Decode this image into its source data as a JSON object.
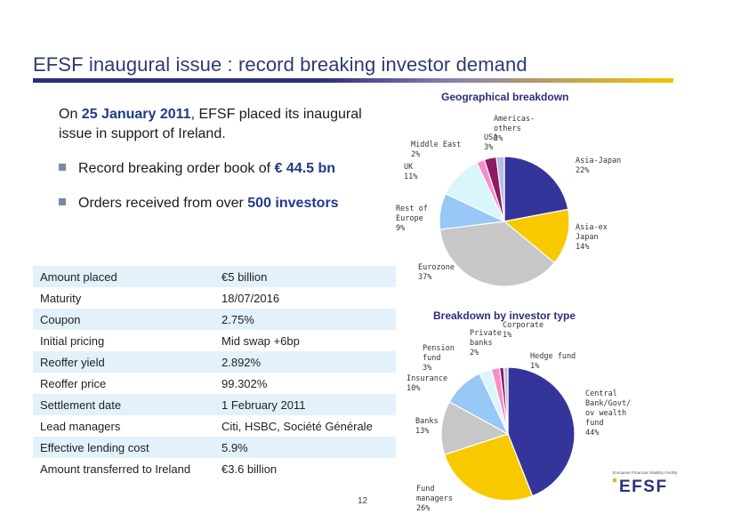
{
  "page": {
    "title": "EFSF inaugural issue : record breaking investor demand",
    "page_number": "12"
  },
  "intro": {
    "prefix": "On ",
    "date": "25 January 2011",
    "suffix": ", EFSF placed its inaugural issue in support of Ireland."
  },
  "bullets": [
    {
      "prefix": "Record breaking order book of ",
      "highlight": "€ 44.5 bn",
      "suffix": ""
    },
    {
      "prefix": "Orders received from over ",
      "highlight": "500 investors",
      "suffix": ""
    }
  ],
  "terms": [
    {
      "label": "Amount placed",
      "value": "€5 billion"
    },
    {
      "label": "Maturity",
      "value": "18/07/2016"
    },
    {
      "label": "Coupon",
      "value": "2.75%"
    },
    {
      "label": "Initial pricing",
      "value": "Mid swap +6bp"
    },
    {
      "label": "Reoffer yield",
      "value": "2.892%"
    },
    {
      "label": "Reoffer price",
      "value": "99.302%"
    },
    {
      "label": "Settlement date",
      "value": "1 February 2011"
    },
    {
      "label": "Lead managers",
      "value": "Citi, HSBC, Société Générale"
    },
    {
      "label": "Effective lending cost",
      "value": "5.9%"
    },
    {
      "label": "Amount transferred to Ireland",
      "value": "€3.6 billion"
    }
  ],
  "logo": {
    "tagline": "European Financial Stability Facility",
    "wordmark": "EFSF"
  },
  "chart_data": [
    {
      "type": "pie",
      "title": "Geographical breakdown",
      "slices": [
        {
          "label": [
            "Asia-Japan"
          ],
          "pct_label": "22%",
          "value": 22,
          "color": "#34359a"
        },
        {
          "label": [
            "Asia-ex",
            "Japan"
          ],
          "pct_label": "14%",
          "value": 14,
          "color": "#f9c900"
        },
        {
          "label": [
            "Eurozone"
          ],
          "pct_label": "37%",
          "value": 37,
          "color": "#c7c7c7"
        },
        {
          "label": [
            "Rest of",
            "Europe"
          ],
          "pct_label": "9%",
          "value": 9,
          "color": "#97c8f6"
        },
        {
          "label": [
            "UK"
          ],
          "pct_label": "11%",
          "value": 11,
          "color": "#d8f6fb"
        },
        {
          "label": [
            "Middle East"
          ],
          "pct_label": "2%",
          "value": 2,
          "color": "#f58fc8"
        },
        {
          "label": [
            "USA"
          ],
          "pct_label": "3%",
          "value": 3,
          "color": "#8e1a63"
        },
        {
          "label": [
            "Americas-",
            "others"
          ],
          "pct_label": "2%",
          "value": 2,
          "color": "#b9bbe0"
        }
      ]
    },
    {
      "type": "pie",
      "title": "Breakdown by investor type",
      "slices": [
        {
          "label": [
            "Central",
            "Bank/Govt/S",
            "ov wealth",
            "fund"
          ],
          "pct_label": "44%",
          "value": 44,
          "color": "#34359a"
        },
        {
          "label": [
            "Fund",
            "managers"
          ],
          "pct_label": "26%",
          "value": 26,
          "color": "#f9c900"
        },
        {
          "label": [
            "Banks"
          ],
          "pct_label": "13%",
          "value": 13,
          "color": "#c7c7c7"
        },
        {
          "label": [
            "Insurance"
          ],
          "pct_label": "10%",
          "value": 10,
          "color": "#97c8f6"
        },
        {
          "label": [
            "Pension",
            "fund"
          ],
          "pct_label": "3%",
          "value": 3,
          "color": "#d8f6fb"
        },
        {
          "label": [
            "Private",
            "banks"
          ],
          "pct_label": "2%",
          "value": 2,
          "color": "#f58fc8"
        },
        {
          "label": [
            "Corporate"
          ],
          "pct_label": "1%",
          "value": 1,
          "color": "#8e1a63"
        },
        {
          "label": [
            "Hedge fund"
          ],
          "pct_label": "1%",
          "value": 1,
          "color": "#b9bbe0"
        }
      ]
    }
  ]
}
